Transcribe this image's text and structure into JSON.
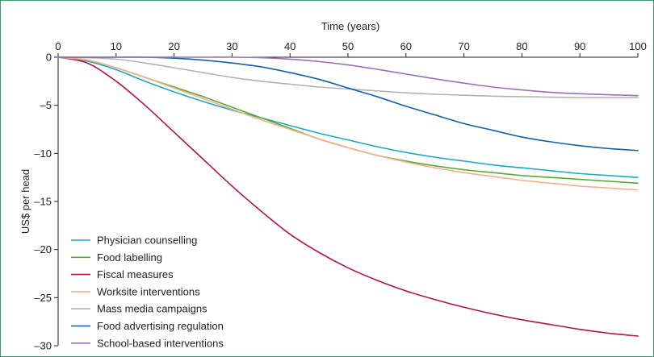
{
  "chart_data": {
    "type": "line",
    "title": "",
    "xlabel": "Time (years)",
    "ylabel": "US$ per head",
    "xlim": [
      0,
      100
    ],
    "ylim": [
      -30,
      0
    ],
    "xticks": [
      "0",
      "10",
      "20",
      "30",
      "40",
      "50",
      "60",
      "70",
      "80",
      "90",
      "100"
    ],
    "yticks": [
      "0",
      "–5",
      "–10",
      "–15",
      "–20",
      "–25",
      "–30"
    ],
    "x_axis_position": "top",
    "grid": false,
    "legend_position": "bottom-left",
    "series": [
      {
        "name": "Physician counselling",
        "color": "#1aa7c9",
        "x": [
          0,
          5,
          10,
          15,
          20,
          25,
          30,
          35,
          40,
          45,
          50,
          55,
          60,
          65,
          70,
          75,
          80,
          85,
          90,
          95,
          100
        ],
        "y": [
          0,
          -0.4,
          -1.3,
          -2.5,
          -3.6,
          -4.6,
          -5.5,
          -6.3,
          -7.1,
          -7.9,
          -8.6,
          -9.3,
          -9.9,
          -10.4,
          -10.8,
          -11.2,
          -11.5,
          -11.8,
          -12.1,
          -12.3,
          -12.5
        ]
      },
      {
        "name": "Food labelling",
        "color": "#5aa832",
        "x": [
          0,
          5,
          10,
          15,
          20,
          25,
          30,
          35,
          40,
          45,
          50,
          55,
          60,
          65,
          70,
          75,
          80,
          85,
          90,
          95,
          100
        ],
        "y": [
          0,
          -0.3,
          -1.1,
          -2.1,
          -3.1,
          -4.1,
          -5.2,
          -6.3,
          -7.4,
          -8.5,
          -9.4,
          -10.2,
          -10.8,
          -11.3,
          -11.7,
          -12.0,
          -12.3,
          -12.5,
          -12.7,
          -12.9,
          -13.1
        ]
      },
      {
        "name": "Fiscal measures",
        "color": "#b0134a",
        "x": [
          0,
          5,
          10,
          15,
          20,
          25,
          30,
          35,
          40,
          45,
          50,
          55,
          60,
          65,
          70,
          75,
          80,
          85,
          90,
          95,
          100
        ],
        "y": [
          0,
          -0.6,
          -2.5,
          -5.0,
          -7.8,
          -10.6,
          -13.4,
          -16.0,
          -18.4,
          -20.3,
          -21.9,
          -23.2,
          -24.3,
          -25.2,
          -26.0,
          -26.7,
          -27.3,
          -27.8,
          -28.3,
          -28.7,
          -29.0
        ]
      },
      {
        "name": "Worksite interventions",
        "color": "#f2b08e",
        "x": [
          0,
          5,
          10,
          15,
          20,
          25,
          30,
          35,
          40,
          45,
          50,
          55,
          60,
          65,
          70,
          75,
          80,
          85,
          90,
          95,
          100
        ],
        "y": [
          0,
          -0.3,
          -1.1,
          -2.1,
          -3.2,
          -4.3,
          -5.4,
          -6.5,
          -7.5,
          -8.5,
          -9.4,
          -10.2,
          -10.9,
          -11.5,
          -12.0,
          -12.4,
          -12.8,
          -13.1,
          -13.4,
          -13.6,
          -13.8
        ]
      },
      {
        "name": "Mass media campaigns",
        "color": "#b3b3b3",
        "x": [
          0,
          5,
          10,
          15,
          20,
          25,
          30,
          35,
          40,
          45,
          50,
          55,
          60,
          65,
          70,
          75,
          80,
          85,
          90,
          95,
          100
        ],
        "y": [
          0,
          -0.05,
          -0.2,
          -0.6,
          -1.1,
          -1.6,
          -2.1,
          -2.5,
          -2.8,
          -3.1,
          -3.3,
          -3.5,
          -3.7,
          -3.85,
          -3.95,
          -4.05,
          -4.1,
          -4.15,
          -4.2,
          -4.2,
          -4.2
        ]
      },
      {
        "name": "Food advertising regulation",
        "color": "#1460a8",
        "x": [
          0,
          5,
          10,
          15,
          20,
          25,
          30,
          35,
          40,
          45,
          50,
          55,
          60,
          65,
          70,
          75,
          80,
          85,
          90,
          95,
          100
        ],
        "y": [
          0,
          0,
          0,
          0,
          -0.1,
          -0.3,
          -0.6,
          -1.0,
          -1.6,
          -2.3,
          -3.2,
          -4.1,
          -5.1,
          -6.0,
          -6.9,
          -7.6,
          -8.3,
          -8.8,
          -9.2,
          -9.5,
          -9.7
        ]
      },
      {
        "name": "School-based interventions",
        "color": "#9b6fb3",
        "x": [
          0,
          5,
          10,
          15,
          20,
          25,
          30,
          35,
          40,
          45,
          50,
          55,
          60,
          65,
          70,
          75,
          80,
          85,
          90,
          95,
          100
        ],
        "y": [
          0,
          0,
          0,
          0,
          0,
          0,
          0,
          -0.05,
          -0.2,
          -0.45,
          -0.8,
          -1.25,
          -1.75,
          -2.25,
          -2.7,
          -3.1,
          -3.4,
          -3.65,
          -3.8,
          -3.9,
          -4.0
        ]
      }
    ]
  }
}
